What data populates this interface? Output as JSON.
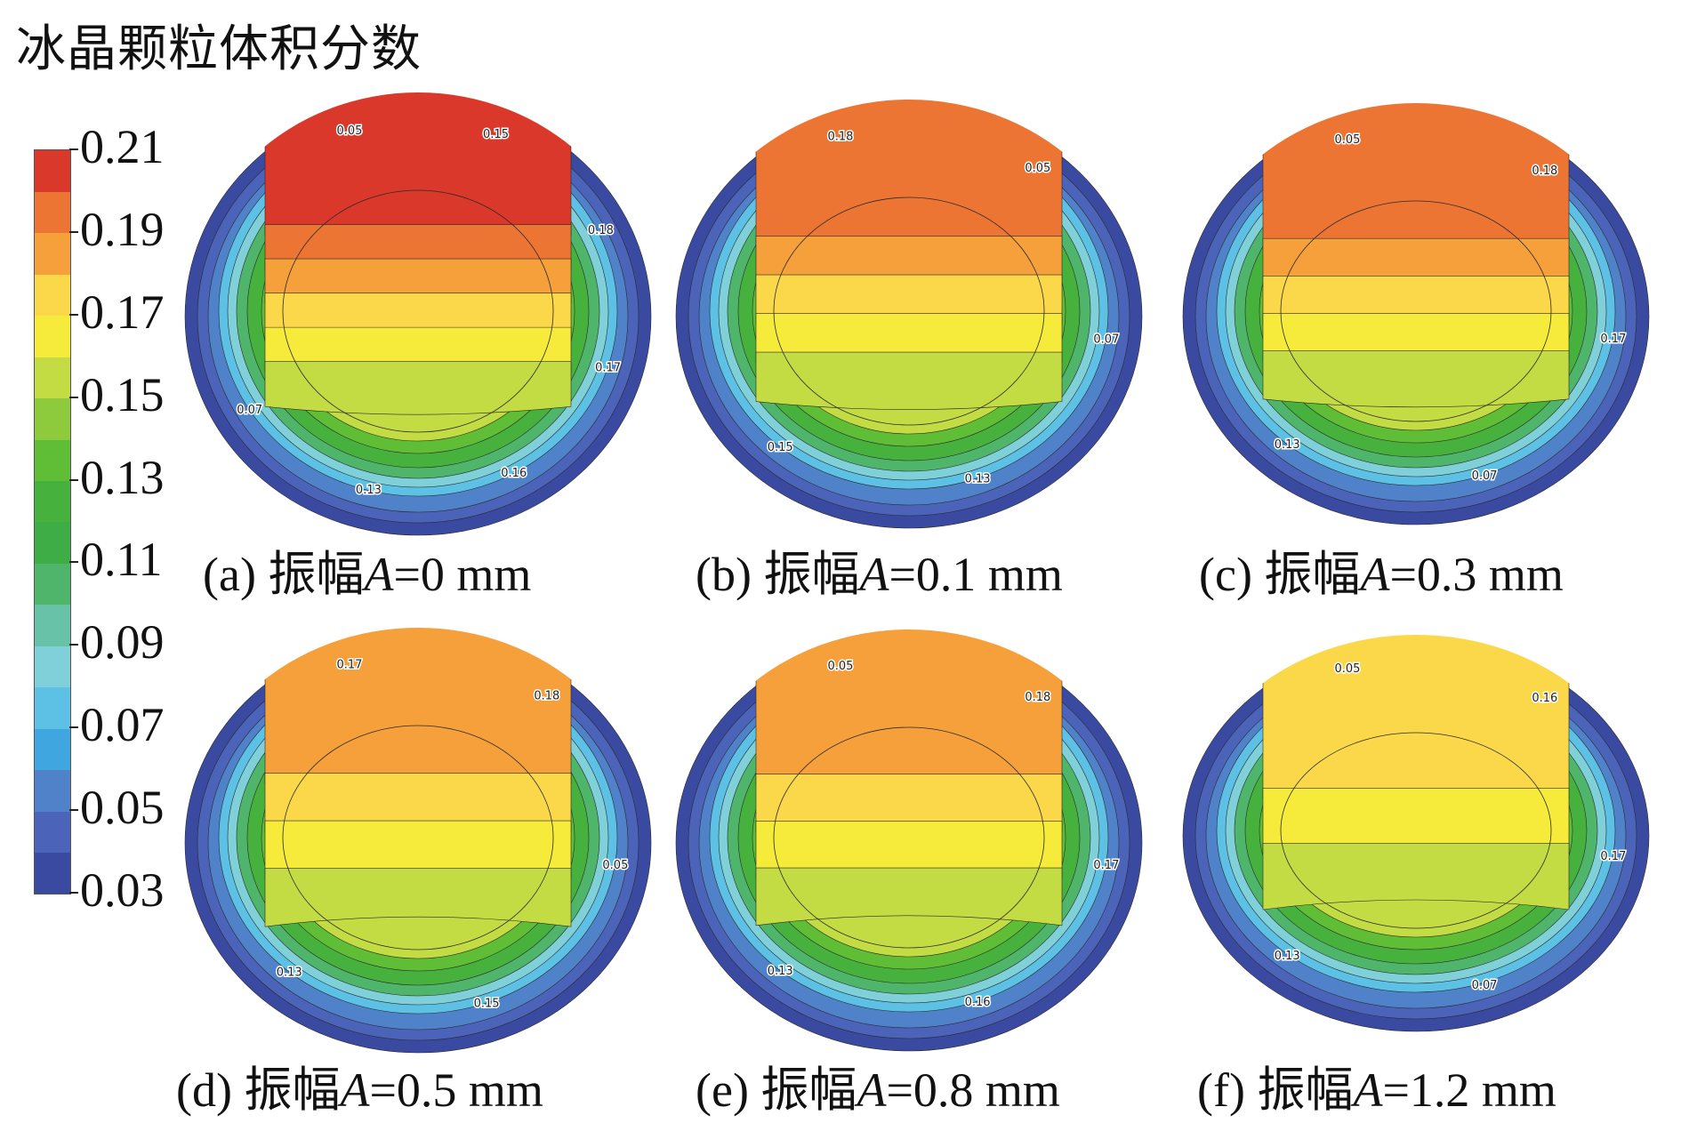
{
  "title": "冰晶颗粒体积分数",
  "chart_data": {
    "type": "heatmap",
    "title": "冰晶颗粒体积分数",
    "colorbar": {
      "ticks": [
        "0.21",
        "0.19",
        "0.17",
        "0.15",
        "0.13",
        "0.11",
        "0.09",
        "0.07",
        "0.05",
        "0.03"
      ],
      "levels": [
        {
          "from": 0.03,
          "to": 0.04,
          "color": "#3a4aa0"
        },
        {
          "from": 0.04,
          "to": 0.05,
          "color": "#4b63b8"
        },
        {
          "from": 0.05,
          "to": 0.06,
          "color": "#4f82c9"
        },
        {
          "from": 0.06,
          "to": 0.07,
          "color": "#3fa6e0"
        },
        {
          "from": 0.07,
          "to": 0.08,
          "color": "#5cc1e4"
        },
        {
          "from": 0.08,
          "to": 0.09,
          "color": "#7fd0d8"
        },
        {
          "from": 0.09,
          "to": 0.1,
          "color": "#67c2a7"
        },
        {
          "from": 0.1,
          "to": 0.11,
          "color": "#4eb56a"
        },
        {
          "from": 0.11,
          "to": 0.12,
          "color": "#3fad45"
        },
        {
          "from": 0.12,
          "to": 0.13,
          "color": "#47b13e"
        },
        {
          "from": 0.13,
          "to": 0.14,
          "color": "#5fbd36"
        },
        {
          "from": 0.14,
          "to": 0.15,
          "color": "#8dcb3c"
        },
        {
          "from": 0.15,
          "to": 0.16,
          "color": "#c4dc44"
        },
        {
          "from": 0.16,
          "to": 0.17,
          "color": "#f6eb3a"
        },
        {
          "from": 0.17,
          "to": 0.18,
          "color": "#fbd84a"
        },
        {
          "from": 0.18,
          "to": 0.19,
          "color": "#f5a03a"
        },
        {
          "from": 0.19,
          "to": 0.2,
          "color": "#ec7534"
        },
        {
          "from": 0.2,
          "to": 0.21,
          "color": "#d9382a"
        }
      ]
    },
    "panels": [
      {
        "id": "a",
        "caption_prefix": "(a) 振幅",
        "var": "A",
        "caption_suffix": "=0 mm",
        "amplitude_mm": 0,
        "max_fraction": 0.21,
        "contour_labels": [
          "0.05",
          "0.15",
          "0.18",
          "0.17",
          "0.16",
          "0.13",
          "0.07"
        ]
      },
      {
        "id": "b",
        "caption_prefix": "(b) 振幅",
        "var": "A",
        "caption_suffix": "=0.1 mm",
        "amplitude_mm": 0.1,
        "max_fraction": 0.2,
        "contour_labels": [
          "0.18",
          "0.05",
          "0.07",
          "0.13",
          "0.15"
        ]
      },
      {
        "id": "c",
        "caption_prefix": "(c) 振幅",
        "var": "A",
        "caption_suffix": "=0.3 mm",
        "amplitude_mm": 0.3,
        "max_fraction": 0.2,
        "contour_labels": [
          "0.05",
          "0.18",
          "0.17",
          "0.07",
          "0.13"
        ]
      },
      {
        "id": "d",
        "caption_prefix": "(d) 振幅",
        "var": "A",
        "caption_suffix": "=0.5 mm",
        "amplitude_mm": 0.5,
        "max_fraction": 0.19,
        "contour_labels": [
          "0.17",
          "0.18",
          "0.05",
          "0.15",
          "0.13"
        ]
      },
      {
        "id": "e",
        "caption_prefix": "(e) 振幅",
        "var": "A",
        "caption_suffix": "=0.8 mm",
        "amplitude_mm": 0.8,
        "max_fraction": 0.19,
        "contour_labels": [
          "0.05",
          "0.18",
          "0.17",
          "0.16",
          "0.13"
        ]
      },
      {
        "id": "f",
        "caption_prefix": "(f) 振幅",
        "var": "A",
        "caption_suffix": "=1.2 mm",
        "amplitude_mm": 1.2,
        "max_fraction": 0.18,
        "contour_labels": [
          "0.05",
          "0.16",
          "0.17",
          "0.07",
          "0.13"
        ]
      }
    ]
  }
}
